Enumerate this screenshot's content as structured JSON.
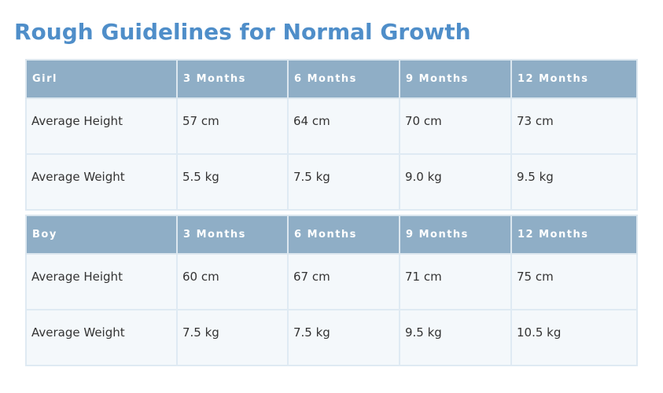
{
  "title": "Rough Guidelines for Normal Growth",
  "tables": [
    {
      "header": [
        "Girl",
        "3 Months",
        "6 Months",
        "9 Months",
        "12 Months"
      ],
      "rows": [
        [
          "Average Height",
          "57 cm",
          "64 cm",
          "70 cm",
          "73 cm"
        ],
        [
          "Average Weight",
          "5.5 kg",
          "7.5 kg",
          "9.0 kg",
          "9.5 kg"
        ]
      ]
    },
    {
      "header": [
        "Boy",
        "3 Months",
        "6 Months",
        "9 Months",
        "12 Months"
      ],
      "rows": [
        [
          "Average Height",
          "60 cm",
          "67 cm",
          "71 cm",
          "75 cm"
        ],
        [
          "Average Weight",
          "7.5 kg",
          "7.5 kg",
          "9.5 kg",
          "10.5 kg"
        ]
      ]
    }
  ],
  "colors": {
    "title": "#4f8ec9",
    "header_bg": "#8faec6",
    "header_text": "#ffffff",
    "cell_bg": "#f4f8fb",
    "cell_text": "#333333"
  }
}
